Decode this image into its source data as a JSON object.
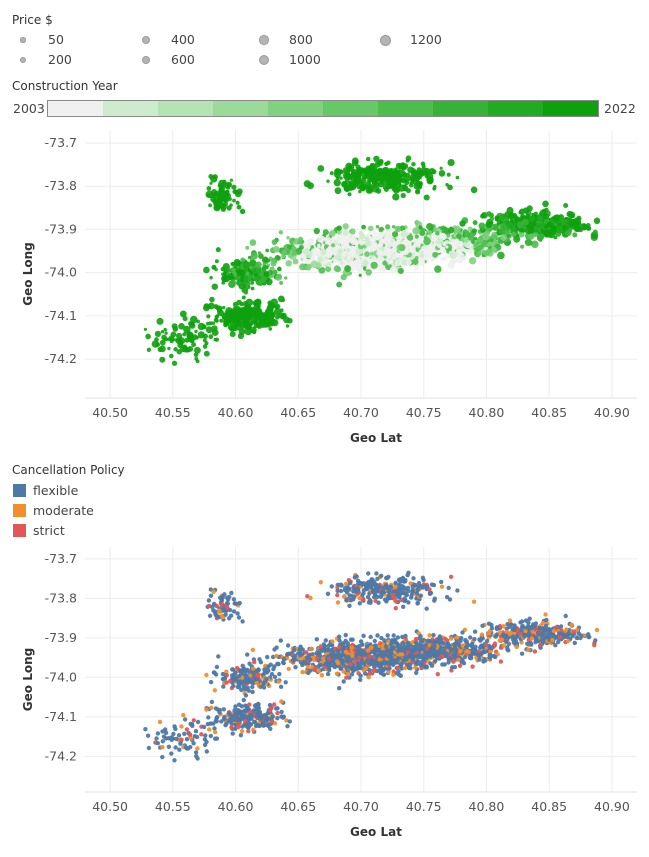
{
  "size_legend": {
    "title": "Price $",
    "items": [
      {
        "label": "50",
        "value": 50
      },
      {
        "label": "400",
        "value": 400
      },
      {
        "label": "800",
        "value": 800
      },
      {
        "label": "1200",
        "value": 1200
      },
      {
        "label": "200",
        "value": 200
      },
      {
        "label": "600",
        "value": 600
      },
      {
        "label": "1000",
        "value": 1000
      }
    ]
  },
  "color_legend": {
    "title": "Construction Year",
    "min_label": "2003",
    "max_label": "2022",
    "ramp_colors": [
      "#f0f0f0",
      "#cdeccd",
      "#b4e4b4",
      "#9adb9a",
      "#80d280",
      "#66c866",
      "#4dbd4d",
      "#36b336",
      "#22aa22",
      "#0ea10e"
    ]
  },
  "category_legend": {
    "title": "Cancellation Policy",
    "items": [
      {
        "label": "flexible",
        "color": "#4e79a7"
      },
      {
        "label": "moderate",
        "color": "#f28e2b"
      },
      {
        "label": "strict",
        "color": "#e15759"
      }
    ]
  },
  "chart_data": [
    {
      "type": "scatter",
      "xlabel": "Geo Lat",
      "ylabel": "Geo Long",
      "xlim": [
        40.48,
        40.92
      ],
      "ylim": [
        -74.29,
        -73.67
      ],
      "xticks": [
        "40.50",
        "40.55",
        "40.60",
        "40.65",
        "40.70",
        "40.75",
        "40.80",
        "40.85",
        "40.90"
      ],
      "yticks": [
        "-73.7",
        "-73.8",
        "-73.9",
        "-74.0",
        "-74.1",
        "-74.2"
      ],
      "encoding": {
        "color": "Construction Year",
        "size": "Price $"
      },
      "clusters": [
        {
          "x": 40.7,
          "y": -73.95,
          "sx": 0.055,
          "sy": 0.035,
          "n": 900
        },
        {
          "x": 40.76,
          "y": -73.93,
          "sx": 0.05,
          "sy": 0.03,
          "n": 500
        },
        {
          "x": 40.84,
          "y": -73.89,
          "sx": 0.035,
          "sy": 0.025,
          "n": 350
        },
        {
          "x": 40.72,
          "y": -73.78,
          "sx": 0.04,
          "sy": 0.03,
          "n": 300
        },
        {
          "x": 40.61,
          "y": -74.0,
          "sx": 0.02,
          "sy": 0.03,
          "n": 200
        },
        {
          "x": 40.61,
          "y": -74.1,
          "sx": 0.025,
          "sy": 0.03,
          "n": 220
        },
        {
          "x": 40.56,
          "y": -74.15,
          "sx": 0.025,
          "sy": 0.04,
          "n": 80
        },
        {
          "x": 40.59,
          "y": -73.82,
          "sx": 0.012,
          "sy": 0.04,
          "n": 70
        }
      ]
    },
    {
      "type": "scatter",
      "xlabel": "Geo Lat",
      "ylabel": "Geo Long",
      "xlim": [
        40.48,
        40.92
      ],
      "ylim": [
        -74.29,
        -73.67
      ],
      "xticks": [
        "40.50",
        "40.55",
        "40.60",
        "40.65",
        "40.70",
        "40.75",
        "40.80",
        "40.85",
        "40.90"
      ],
      "yticks": [
        "-73.7",
        "-73.8",
        "-73.9",
        "-74.0",
        "-74.1",
        "-74.2"
      ],
      "encoding": {
        "color": "Cancellation Policy"
      },
      "series": [
        {
          "name": "flexible",
          "color": "#4e79a7",
          "share": 0.74
        },
        {
          "name": "moderate",
          "color": "#f28e2b",
          "share": 0.16
        },
        {
          "name": "strict",
          "color": "#e15759",
          "share": 0.1
        }
      ]
    }
  ]
}
